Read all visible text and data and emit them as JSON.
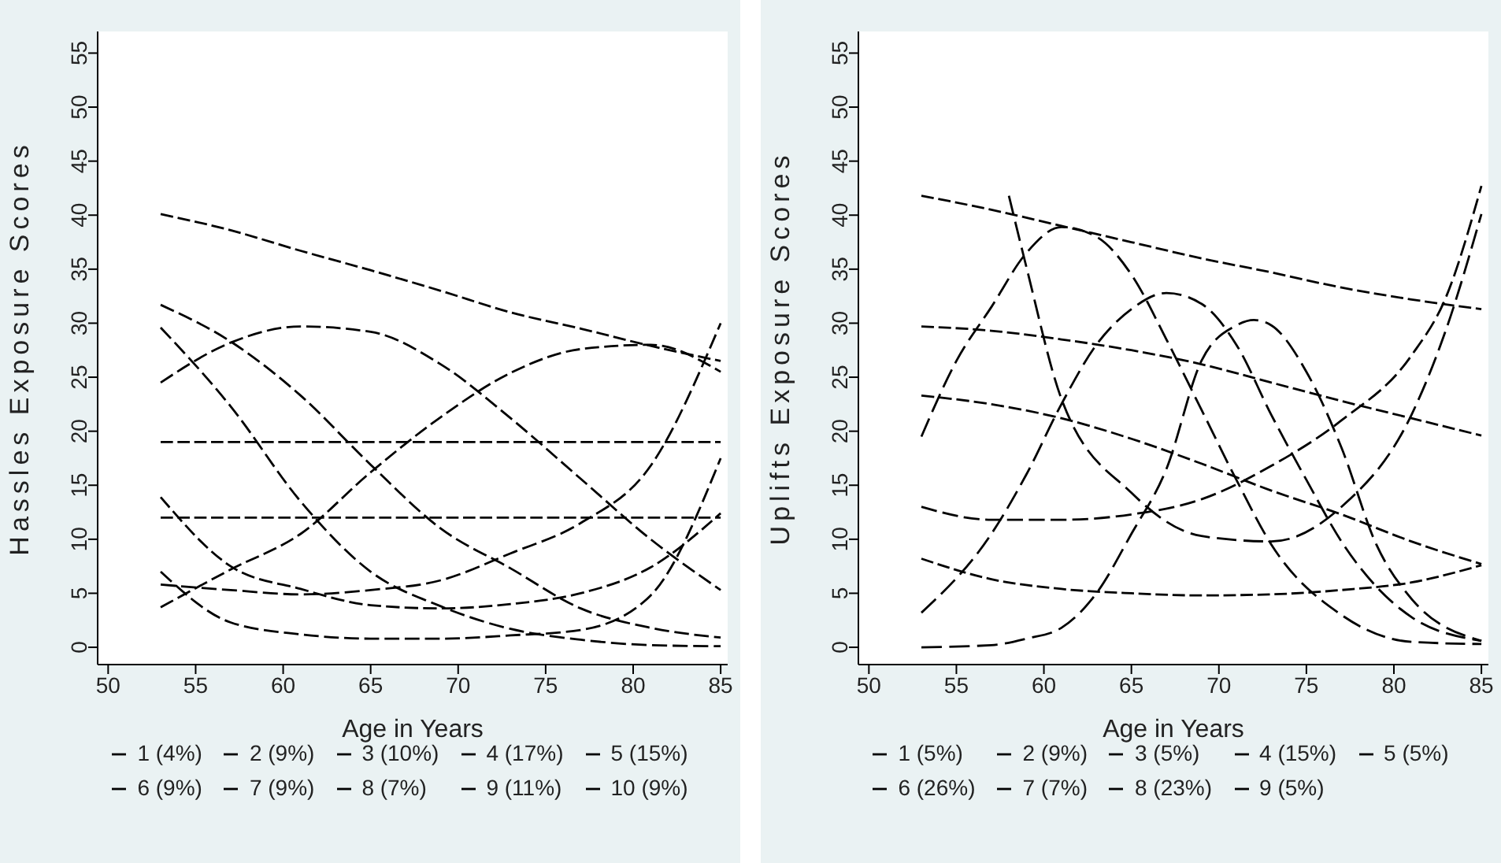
{
  "chart_data": [
    {
      "type": "line",
      "xlabel": "Age in Years",
      "ylabel": "Hassles Exposure Scores",
      "x": [
        53,
        57,
        61,
        65,
        69,
        73,
        77,
        81,
        85
      ],
      "xlim": [
        49.4,
        85.4
      ],
      "xticks": [
        50,
        55,
        60,
        65,
        70,
        75,
        80,
        85
      ],
      "ylim": [
        -1.6,
        57
      ],
      "yticks": [
        0,
        5,
        10,
        15,
        20,
        25,
        30,
        35,
        40,
        45,
        50,
        55
      ],
      "grid": false,
      "legend": "bottom",
      "marker": "none",
      "line_style": "dashed",
      "series": [
        {
          "name": "1 (4%)",
          "color": "#000000",
          "values": [
            7.0,
            2.3,
            1.2,
            0.8,
            0.8,
            1.1,
            1.6,
            4.8,
            17.5
          ]
        },
        {
          "name": "2 (9%)",
          "color": "#000000",
          "values": [
            5.8,
            5.3,
            4.9,
            5.3,
            6.2,
            8.7,
            11.5,
            16.8,
            30.0
          ]
        },
        {
          "name": "3 (10%)",
          "color": "#000000",
          "values": [
            13.9,
            7.5,
            5.4,
            3.9,
            3.6,
            4.0,
            5.0,
            7.4,
            12.4
          ]
        },
        {
          "name": "4 (17%)",
          "color": "#000000",
          "values": [
            12.0,
            12.0,
            12.0,
            12.0,
            12.0,
            12.0,
            12.0,
            12.0,
            12.0
          ]
        },
        {
          "name": "5 (15%)",
          "color": "#000000",
          "values": [
            19.0,
            19.0,
            19.0,
            19.0,
            19.0,
            19.0,
            19.0,
            19.0,
            19.0
          ]
        },
        {
          "name": "6 (9%)",
          "color": "#000000",
          "values": [
            29.6,
            22.3,
            13.5,
            7.0,
            3.8,
            1.7,
            0.7,
            0.2,
            0.1
          ]
        },
        {
          "name": "7 (9%)",
          "color": "#000000",
          "values": [
            31.7,
            28.3,
            23.3,
            16.9,
            11.0,
            7.3,
            3.6,
            1.8,
            0.9
          ]
        },
        {
          "name": "8 (7%)",
          "color": "#000000",
          "values": [
            3.7,
            7.2,
            10.5,
            16.2,
            21.3,
            25.4,
            27.6,
            28.0,
            25.5
          ]
        },
        {
          "name": "9 (11%)",
          "color": "#000000",
          "values": [
            24.5,
            28.2,
            29.7,
            29.2,
            26.2,
            21.2,
            15.6,
            10.0,
            5.3
          ]
        },
        {
          "name": "10 (9%)",
          "color": "#000000",
          "values": [
            40.1,
            38.6,
            36.7,
            34.9,
            33.0,
            31.0,
            29.5,
            27.9,
            26.5
          ]
        }
      ]
    },
    {
      "type": "line",
      "xlabel": "Age in Years",
      "ylabel": "Uplifts Exposure Scores",
      "x": [
        53,
        57,
        61,
        65,
        69,
        73,
        77,
        81,
        85
      ],
      "xlim": [
        49.4,
        85.4
      ],
      "xticks": [
        50,
        55,
        60,
        65,
        70,
        75,
        80,
        85
      ],
      "ylim": [
        -1.6,
        57
      ],
      "yticks": [
        0,
        5,
        10,
        15,
        20,
        25,
        30,
        35,
        40,
        45,
        50,
        55
      ],
      "grid": false,
      "legend": "bottom",
      "marker": "none",
      "line_style": "dashed",
      "series": [
        {
          "name": "1 (5%)",
          "color": "#000000",
          "values": [
            8.2,
            6.3,
            5.4,
            5.0,
            4.8,
            4.9,
            5.3,
            6.0,
            7.6
          ]
        },
        {
          "name": "2 (9%)",
          "color": "#000000",
          "x": [
            53,
            57,
            61,
            65,
            69,
            73,
            77,
            81,
            83,
            85
          ],
          "values": [
            13.0,
            11.8,
            11.8,
            12.3,
            13.7,
            16.8,
            21.0,
            27.0,
            32.5,
            42.7
          ]
        },
        {
          "name": "3 (5%)",
          "color": "#000000",
          "x": [
            58,
            59,
            61,
            65,
            69,
            73,
            77,
            81,
            83,
            85
          ],
          "values": [
            41.8,
            35.2,
            23.0,
            14.3,
            10.3,
            9.8,
            13.0,
            21.5,
            29.5,
            40.1
          ]
        },
        {
          "name": "4 (15%)",
          "color": "#000000",
          "values": [
            23.3,
            22.5,
            21.2,
            19.3,
            17.0,
            14.5,
            12.3,
            9.8,
            7.7
          ]
        },
        {
          "name": "5 (5%)",
          "color": "#000000",
          "x": [
            53,
            57,
            59,
            61,
            63,
            65,
            67,
            69,
            71,
            72,
            73,
            75,
            77,
            79,
            81,
            85
          ],
          "values": [
            0.0,
            0.2,
            0.8,
            1.8,
            5.0,
            10.5,
            16.5,
            26.5,
            29.8,
            30.3,
            29.8,
            25.5,
            18.5,
            9.5,
            4.5,
            0.6
          ]
        },
        {
          "name": "6 (26%)",
          "color": "#000000",
          "values": [
            29.7,
            29.3,
            28.5,
            27.5,
            26.2,
            24.5,
            22.8,
            21.2,
            19.6
          ]
        },
        {
          "name": "7 (7%)",
          "color": "#000000",
          "x": [
            53,
            57,
            59,
            61,
            63,
            65,
            67,
            69,
            71,
            73,
            75,
            77,
            81,
            85
          ],
          "values": [
            3.2,
            10.5,
            16.0,
            22.5,
            28.0,
            31.3,
            32.8,
            31.8,
            28.0,
            21.5,
            15.5,
            9.8,
            2.8,
            0.6
          ]
        },
        {
          "name": "8 (23%)",
          "color": "#000000",
          "values": [
            41.8,
            40.5,
            39.0,
            37.5,
            36.0,
            34.7,
            33.3,
            32.2,
            31.3
          ]
        },
        {
          "name": "9 (5%)",
          "color": "#000000",
          "x": [
            53,
            55,
            57,
            59,
            61,
            63,
            65,
            67,
            69,
            71,
            73,
            77,
            81,
            85
          ],
          "values": [
            19.5,
            26.5,
            31.5,
            36.5,
            38.9,
            38.0,
            34.5,
            28.5,
            22.0,
            15.5,
            9.5,
            3.0,
            0.5,
            0.3
          ]
        }
      ]
    }
  ]
}
